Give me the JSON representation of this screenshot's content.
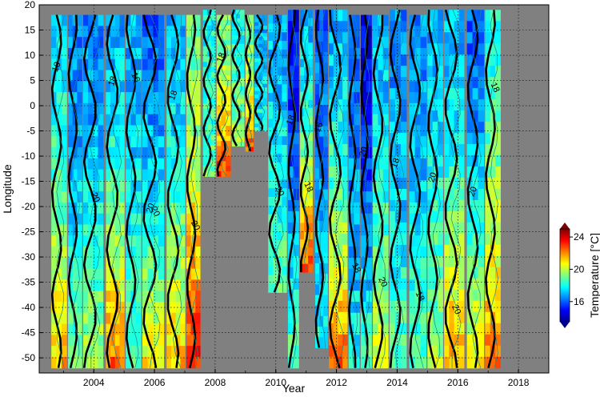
{
  "chart_data": {
    "type": "heatmap",
    "title": "",
    "xlabel": "Year",
    "ylabel": "Longitude",
    "xlim": [
      2002.2,
      2019.0
    ],
    "ylim": [
      -53,
      20
    ],
    "x_ticks": [
      2004,
      2006,
      2008,
      2010,
      2012,
      2014,
      2016,
      2018
    ],
    "y_ticks": [
      20,
      15,
      10,
      5,
      0,
      -5,
      -10,
      -15,
      -20,
      -25,
      -30,
      -35,
      -40,
      -45,
      -50
    ],
    "grid": true,
    "missing_color": "#808080",
    "colorbar": {
      "label": "Temperature [°C]",
      "range": [
        13.5,
        25
      ],
      "ticks": [
        16,
        20,
        24
      ],
      "colormap": "jet",
      "placement": "right"
    },
    "contour_levels": [
      18,
      20
    ],
    "contour_label_values": [
      "18",
      "20",
      "18",
      "20",
      "18",
      "20",
      "18",
      "20",
      "18",
      "18",
      "16",
      "18",
      "20",
      "20",
      "18",
      "18",
      "20",
      "20",
      "20",
      "16",
      "20",
      "18"
    ],
    "sections": [
      {
        "x0": 2002.6,
        "x1": 2003.1,
        "y_top": 18,
        "y_bottom": -52,
        "temp_top": 17.5,
        "temp_bottom": 21.5
      },
      {
        "x0": 2003.15,
        "x1": 2003.6,
        "y_top": 18,
        "y_bottom": -52,
        "temp_top": 16.5,
        "temp_bottom": 19
      },
      {
        "x0": 2003.65,
        "x1": 2004.3,
        "y_top": 18,
        "y_bottom": -52,
        "temp_top": 16.5,
        "temp_bottom": 20
      },
      {
        "x0": 2004.4,
        "x1": 2005.0,
        "y_top": 18,
        "y_bottom": -52,
        "temp_top": 17,
        "temp_bottom": 22.5
      },
      {
        "x0": 2005.05,
        "x1": 2005.55,
        "y_top": 18,
        "y_bottom": -52,
        "temp_top": 17,
        "temp_bottom": 19
      },
      {
        "x0": 2005.6,
        "x1": 2006.3,
        "y_top": 18,
        "y_bottom": -52,
        "temp_top": 16,
        "temp_bottom": 21
      },
      {
        "x0": 2006.4,
        "x1": 2007.0,
        "y_top": 18,
        "y_bottom": -52,
        "temp_top": 17,
        "temp_bottom": 21.5
      },
      {
        "x0": 2007.05,
        "x1": 2007.5,
        "y_top": 18,
        "y_bottom": -52,
        "temp_top": 19,
        "temp_bottom": 23.5
      },
      {
        "x0": 2007.6,
        "x1": 2008.0,
        "y_top": 19,
        "y_bottom": -14,
        "temp_top": 18,
        "temp_bottom": 19
      },
      {
        "x0": 2008.05,
        "x1": 2008.5,
        "y_top": 18,
        "y_bottom": -14,
        "temp_top": 19,
        "temp_bottom": 23
      },
      {
        "x0": 2008.55,
        "x1": 2008.95,
        "y_top": 19,
        "y_bottom": -8,
        "temp_top": 18,
        "temp_bottom": 20
      },
      {
        "x0": 2009.0,
        "x1": 2009.25,
        "y_top": 18,
        "y_bottom": -9,
        "temp_top": 19,
        "temp_bottom": 22.5
      },
      {
        "x0": 2009.3,
        "x1": 2009.7,
        "y_top": 18,
        "y_bottom": -5,
        "temp_top": 17,
        "temp_bottom": 18
      },
      {
        "x0": 2009.75,
        "x1": 2010.35,
        "y_top": 18,
        "y_bottom": -37,
        "temp_top": 17,
        "temp_bottom": 19
      },
      {
        "x0": 2010.4,
        "x1": 2010.75,
        "y_top": 19,
        "y_bottom": -52,
        "temp_top": 15,
        "temp_bottom": 19
      },
      {
        "x0": 2010.8,
        "x1": 2011.2,
        "y_top": 19,
        "y_bottom": -33,
        "temp_top": 17,
        "temp_bottom": 23
      },
      {
        "x0": 2011.3,
        "x1": 2011.7,
        "y_top": 19,
        "y_bottom": -48,
        "temp_top": 16,
        "temp_bottom": 18
      },
      {
        "x0": 2011.75,
        "x1": 2012.35,
        "y_top": 19,
        "y_bottom": -52,
        "temp_top": 17,
        "temp_bottom": 22.5
      },
      {
        "x0": 2012.4,
        "x1": 2012.75,
        "y_top": 18,
        "y_bottom": -52,
        "temp_top": 16,
        "temp_bottom": 18
      },
      {
        "x0": 2012.8,
        "x1": 2013.15,
        "y_top": 18,
        "y_bottom": -52,
        "temp_top": 14.5,
        "temp_bottom": 19
      },
      {
        "x0": 2013.2,
        "x1": 2013.7,
        "y_top": 18,
        "y_bottom": -52,
        "temp_top": 17,
        "temp_bottom": 20.5
      },
      {
        "x0": 2013.75,
        "x1": 2014.3,
        "y_top": 19,
        "y_bottom": -52,
        "temp_top": 16.5,
        "temp_bottom": 19
      },
      {
        "x0": 2014.4,
        "x1": 2014.95,
        "y_top": 18,
        "y_bottom": -52,
        "temp_top": 16.5,
        "temp_bottom": 19
      },
      {
        "x0": 2015.0,
        "x1": 2015.5,
        "y_top": 19,
        "y_bottom": -52,
        "temp_top": 17,
        "temp_bottom": 20
      },
      {
        "x0": 2015.55,
        "x1": 2016.2,
        "y_top": 19,
        "y_bottom": -52,
        "temp_top": 17,
        "temp_bottom": 22
      },
      {
        "x0": 2016.3,
        "x1": 2016.85,
        "y_top": 19,
        "y_bottom": -52,
        "temp_top": 16,
        "temp_bottom": 21
      },
      {
        "x0": 2016.9,
        "x1": 2017.4,
        "y_top": 19,
        "y_bottom": -52,
        "temp_top": 18,
        "temp_bottom": 22.5
      }
    ]
  }
}
